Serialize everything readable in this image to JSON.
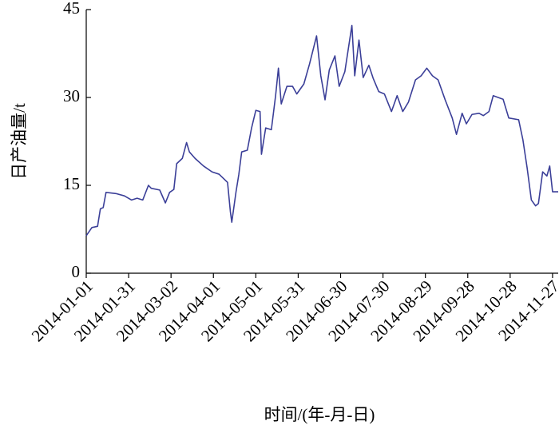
{
  "chart_data": {
    "type": "line",
    "y_label": "日产油量/t",
    "x_label": "时间/(年-月-日)",
    "color": "#3b3f98",
    "xlim": [
      "2014-01-01",
      "2014-12-01"
    ],
    "xticks": [
      "2014-01-01",
      "2014-01-31",
      "2014-03-02",
      "2014-04-01",
      "2014-05-01",
      "2014-05-31",
      "2014-06-30",
      "2014-07-30",
      "2014-08-29",
      "2014-09-28",
      "2014-10-28",
      "2014-11-27"
    ],
    "ylim": [
      0,
      45
    ],
    "yticks": [
      0,
      15,
      30,
      45
    ],
    "x": [
      "2014-01-01",
      "2014-01-05",
      "2014-01-09",
      "2014-01-11",
      "2014-01-13",
      "2014-01-15",
      "2014-01-22",
      "2014-01-28",
      "2014-02-02",
      "2014-02-06",
      "2014-02-10",
      "2014-02-14",
      "2014-02-16",
      "2014-02-22",
      "2014-02-26",
      "2014-03-01",
      "2014-03-04",
      "2014-03-06",
      "2014-03-10",
      "2014-03-13",
      "2014-03-15",
      "2014-03-19",
      "2014-03-25",
      "2014-03-31",
      "2014-04-05",
      "2014-04-11",
      "2014-04-13",
      "2014-04-14",
      "2014-04-17",
      "2014-04-19",
      "2014-04-21",
      "2014-04-25",
      "2014-04-28",
      "2014-05-01",
      "2014-05-04",
      "2014-05-05",
      "2014-05-08",
      "2014-05-12",
      "2014-05-15",
      "2014-05-17",
      "2014-05-19",
      "2014-05-23",
      "2014-05-27",
      "2014-05-30",
      "2014-06-04",
      "2014-06-08",
      "2014-06-13",
      "2014-06-16",
      "2014-06-19",
      "2014-06-22",
      "2014-06-26",
      "2014-06-29",
      "2014-07-03",
      "2014-07-08",
      "2014-07-10",
      "2014-07-13",
      "2014-07-16",
      "2014-07-20",
      "2014-07-23",
      "2014-07-27",
      "2014-07-31",
      "2014-08-05",
      "2014-08-09",
      "2014-08-13",
      "2014-08-17",
      "2014-08-22",
      "2014-08-26",
      "2014-08-30",
      "2014-09-03",
      "2014-09-07",
      "2014-09-12",
      "2014-09-17",
      "2014-09-20",
      "2014-09-24",
      "2014-09-27",
      "2014-10-01",
      "2014-10-06",
      "2014-10-09",
      "2014-10-13",
      "2014-10-16",
      "2014-10-23",
      "2014-10-27",
      "2014-11-03",
      "2014-11-06",
      "2014-11-09",
      "2014-11-12",
      "2014-11-15",
      "2014-11-17",
      "2014-11-20",
      "2014-11-23",
      "2014-11-25",
      "2014-11-27",
      "2014-12-01"
    ],
    "values": [
      6.4,
      7.8,
      8,
      11,
      11.2,
      13.8,
      13.6,
      13.2,
      12.5,
      12.8,
      12.5,
      15,
      14.5,
      14.2,
      12,
      13.8,
      14.3,
      18.7,
      19.6,
      22.3,
      20.7,
      19.6,
      18.3,
      17.3,
      16.9,
      15.5,
      10.5,
      8.7,
      13.9,
      16.9,
      20.7,
      21,
      24.8,
      27.8,
      27.6,
      20.3,
      24.8,
      24.5,
      30.3,
      35,
      28.9,
      31.9,
      31.9,
      30.6,
      32.3,
      35.7,
      40.5,
      33.7,
      29.6,
      34.7,
      37.1,
      31.9,
      34.4,
      42.3,
      33.7,
      39.8,
      33.4,
      35.5,
      33.3,
      31,
      30.6,
      27.6,
      30.3,
      27.6,
      29.2,
      33,
      33.7,
      35,
      33.7,
      33,
      29.6,
      26.5,
      23.7,
      27.3,
      25.5,
      27.1,
      27.3,
      26.9,
      27.6,
      30.3,
      29.7,
      26.5,
      26.2,
      22.8,
      18,
      12.5,
      11.5,
      11.9,
      17.3,
      16.6,
      18.3,
      13.9,
      13.9
    ]
  }
}
